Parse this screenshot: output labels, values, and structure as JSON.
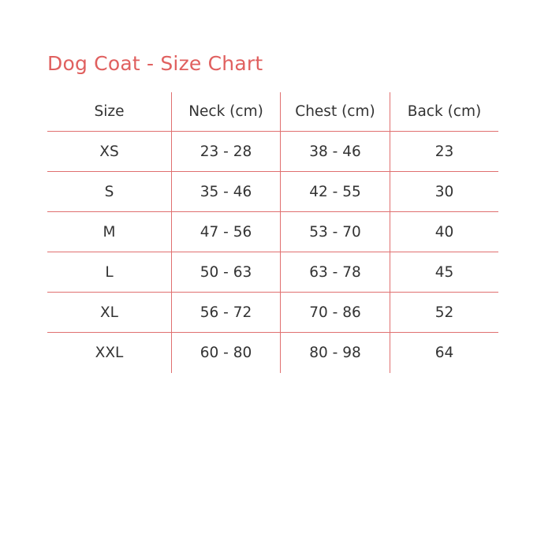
{
  "title": "Dog Coat - Size Chart",
  "accent_color": "#e0605f",
  "headers": [
    "Size",
    "Neck (cm)",
    "Chest (cm)",
    "Back (cm)"
  ],
  "rows": [
    [
      "XS",
      "23 - 28",
      "38 - 46",
      "23"
    ],
    [
      "S",
      "35 - 46",
      "42 - 55",
      "30"
    ],
    [
      "M",
      "47 - 56",
      "53 - 70",
      "40"
    ],
    [
      "L",
      "50 - 63",
      "63 - 78",
      "45"
    ],
    [
      "XL",
      "56 - 72",
      "70 - 86",
      "52"
    ],
    [
      "XXL",
      "60 - 80",
      "80 - 98",
      "64"
    ]
  ]
}
